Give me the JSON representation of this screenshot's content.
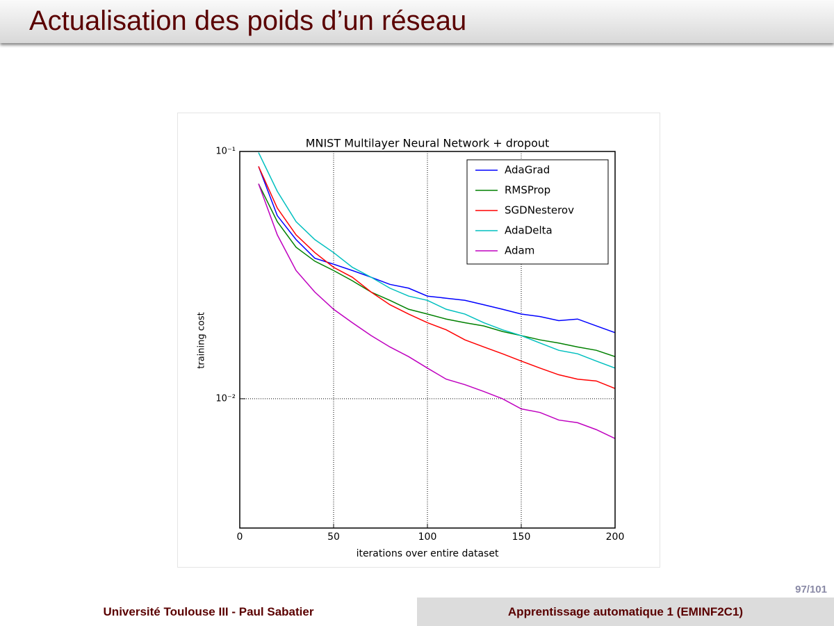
{
  "header": {
    "title": "Actualisation des poids d’un réseau"
  },
  "chart_data": {
    "type": "line",
    "title": "MNIST Multilayer Neural Network + dropout",
    "x_label": "iterations over entire dataset",
    "y_label": "training cost",
    "x": [
      10,
      20,
      30,
      40,
      50,
      60,
      70,
      80,
      90,
      100,
      110,
      120,
      130,
      140,
      150,
      160,
      170,
      180,
      190,
      200
    ],
    "series": [
      {
        "name": "AdaGrad",
        "color": "#0000ff",
        "values": [
          0.087,
          0.055,
          0.044,
          0.037,
          0.035,
          0.033,
          0.031,
          0.029,
          0.028,
          0.026,
          0.0255,
          0.025,
          0.024,
          0.023,
          0.022,
          0.0215,
          0.0207,
          0.021,
          0.0197,
          0.0185
        ]
      },
      {
        "name": "RMSProp",
        "color": "#008000",
        "values": [
          0.074,
          0.052,
          0.041,
          0.036,
          0.033,
          0.03,
          0.027,
          0.025,
          0.023,
          0.022,
          0.021,
          0.0203,
          0.0197,
          0.0187,
          0.018,
          0.0173,
          0.0168,
          0.0162,
          0.0157,
          0.0148
        ]
      },
      {
        "name": "SGDNesterov",
        "color": "#ff0000",
        "values": [
          0.087,
          0.059,
          0.046,
          0.039,
          0.034,
          0.031,
          0.027,
          0.024,
          0.022,
          0.0203,
          0.019,
          0.0173,
          0.0162,
          0.0152,
          0.0142,
          0.0133,
          0.0125,
          0.012,
          0.0118,
          0.011
        ]
      },
      {
        "name": "AdaDelta",
        "color": "#00bfbf",
        "values": [
          0.099,
          0.069,
          0.052,
          0.044,
          0.039,
          0.034,
          0.031,
          0.028,
          0.026,
          0.025,
          0.023,
          0.022,
          0.0203,
          0.019,
          0.018,
          0.0168,
          0.0157,
          0.0152,
          0.0142,
          0.0133
        ]
      },
      {
        "name": "Adam",
        "color": "#bf00bf",
        "values": [
          0.074,
          0.046,
          0.033,
          0.027,
          0.023,
          0.0203,
          0.018,
          0.0162,
          0.0148,
          0.0133,
          0.012,
          0.0114,
          0.0107,
          0.01,
          0.0091,
          0.0088,
          0.0082,
          0.008,
          0.0075,
          0.0069
        ]
      }
    ],
    "xlim": [
      0,
      200
    ],
    "xticks": [
      0,
      50,
      100,
      150,
      200
    ],
    "ylim": [
      0.003,
      0.1
    ],
    "log_y": true,
    "yticks": [
      {
        "value": 0.01,
        "label": "10⁻²"
      },
      {
        "value": 0.1,
        "label": "10⁻¹"
      }
    ],
    "grid": true,
    "legend": "upper right"
  },
  "footer": {
    "page_number": "97/101",
    "left": "Université Toulouse III - Paul Sabatier",
    "right": "Apprentissage automatique 1 (EMINF2C1)"
  }
}
